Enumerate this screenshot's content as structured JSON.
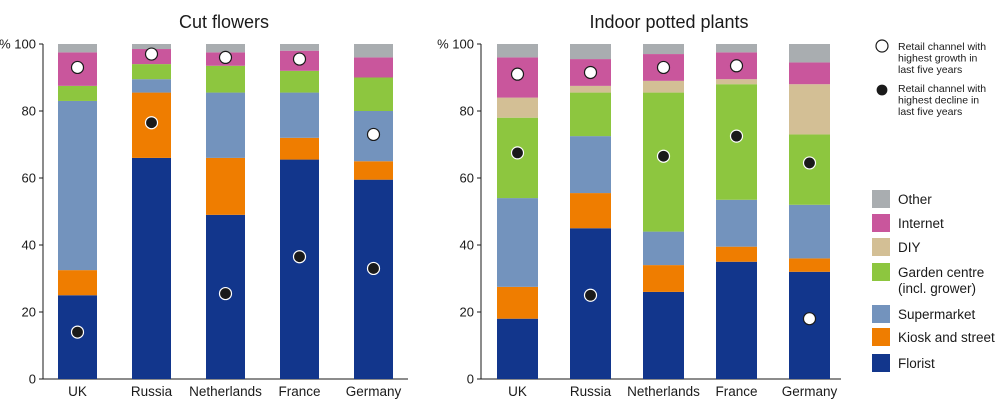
{
  "ylabel": "%",
  "ytick_labels": [
    "0",
    "20",
    "40",
    "60",
    "80",
    "100"
  ],
  "legend": {
    "marker_growth_label": [
      "Retail channel with",
      "highest growth in",
      "last five years"
    ],
    "marker_decline_label": [
      "Retail channel with",
      "highest decline in",
      "last five years"
    ],
    "items": [
      {
        "name": "Other",
        "color": "#a9adb0"
      },
      {
        "name": "Internet",
        "color": "#c9569c"
      },
      {
        "name": "DIY",
        "color": "#d3bf95"
      },
      {
        "name": "Garden centre",
        "name_line2": "(incl. grower)",
        "color": "#8dc63f"
      },
      {
        "name": "Supermarket",
        "color": "#7393bd"
      },
      {
        "name": "Kiosk and street",
        "color": "#ef7d00"
      },
      {
        "name": "Florist",
        "color": "#12368c"
      }
    ]
  },
  "chart_data": [
    {
      "type": "bar",
      "stacked": true,
      "title": "Cut flowers",
      "ylim": [
        0,
        100
      ],
      "yticks": [
        0,
        20,
        40,
        60,
        80,
        100
      ],
      "grid": false,
      "categories": [
        "UK",
        "Russia",
        "Netherlands",
        "France",
        "Germany"
      ],
      "series": [
        {
          "name": "Florist",
          "values": [
            25,
            66,
            49,
            65.5,
            59.5
          ]
        },
        {
          "name": "Kiosk and street",
          "values": [
            7.5,
            19.5,
            17,
            6.5,
            5.5
          ]
        },
        {
          "name": "Supermarket",
          "values": [
            50.5,
            4,
            19.5,
            13.5,
            15
          ]
        },
        {
          "name": "Garden centre",
          "values": [
            4.5,
            4.5,
            8,
            6.5,
            10
          ]
        },
        {
          "name": "DIY",
          "values": [
            0,
            0,
            0,
            0,
            0
          ]
        },
        {
          "name": "Internet",
          "values": [
            10,
            4.5,
            4,
            6,
            6
          ]
        },
        {
          "name": "Other",
          "values": [
            2.5,
            1.5,
            2.5,
            2,
            4
          ]
        }
      ],
      "markers": {
        "growth": [
          {
            "category": "UK",
            "channel": "Internet",
            "y": 93
          },
          {
            "category": "Russia",
            "channel": "Internet",
            "y": 97
          },
          {
            "category": "Netherlands",
            "channel": "Internet",
            "y": 96
          },
          {
            "category": "France",
            "channel": "Internet",
            "y": 95.5
          },
          {
            "category": "Germany",
            "channel": "Supermarket",
            "y": 73
          }
        ],
        "decline": [
          {
            "category": "UK",
            "channel": "Florist",
            "y": 14
          },
          {
            "category": "Russia",
            "channel": "Kiosk and street",
            "y": 76.5
          },
          {
            "category": "Netherlands",
            "channel": "Florist",
            "y": 25.5
          },
          {
            "category": "France",
            "channel": "Florist",
            "y": 36.5
          },
          {
            "category": "Germany",
            "channel": "Florist",
            "y": 33
          }
        ]
      }
    },
    {
      "type": "bar",
      "stacked": true,
      "title": "Indoor potted plants",
      "ylim": [
        0,
        100
      ],
      "yticks": [
        0,
        20,
        40,
        60,
        80,
        100
      ],
      "grid": false,
      "categories": [
        "UK",
        "Russia",
        "Netherlands",
        "France",
        "Germany"
      ],
      "series": [
        {
          "name": "Florist",
          "values": [
            18,
            45,
            26,
            35,
            32
          ]
        },
        {
          "name": "Kiosk and street",
          "values": [
            9.5,
            10.5,
            8,
            4.5,
            4
          ]
        },
        {
          "name": "Supermarket",
          "values": [
            26.5,
            17,
            10,
            14,
            16
          ]
        },
        {
          "name": "Garden centre",
          "values": [
            24,
            13,
            41.5,
            34.5,
            21
          ]
        },
        {
          "name": "DIY",
          "values": [
            6,
            2,
            3.5,
            1.5,
            15
          ]
        },
        {
          "name": "Internet",
          "values": [
            12,
            8,
            8,
            8,
            6.5
          ]
        },
        {
          "name": "Other",
          "values": [
            4,
            4.5,
            3,
            2.5,
            5.5
          ]
        }
      ],
      "markers": {
        "growth": [
          {
            "category": "UK",
            "channel": "Internet",
            "y": 91
          },
          {
            "category": "Russia",
            "channel": "Internet",
            "y": 91.5
          },
          {
            "category": "Netherlands",
            "channel": "Internet",
            "y": 93
          },
          {
            "category": "France",
            "channel": "Internet",
            "y": 93.5
          },
          {
            "category": "Germany",
            "channel": "Florist",
            "y": 18
          }
        ],
        "decline": [
          {
            "category": "UK",
            "channel": "Garden centre",
            "y": 67.5
          },
          {
            "category": "Russia",
            "channel": "Florist",
            "y": 25
          },
          {
            "category": "Netherlands",
            "channel": "Garden centre",
            "y": 66.5
          },
          {
            "category": "France",
            "channel": "Garden centre",
            "y": 72.5
          },
          {
            "category": "Germany",
            "channel": "Garden centre",
            "y": 64.5
          }
        ]
      }
    }
  ]
}
